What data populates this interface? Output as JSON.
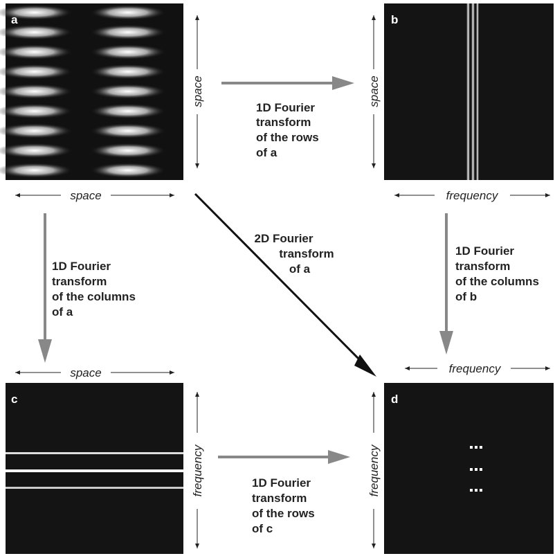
{
  "panels": [
    {
      "label": "a"
    },
    {
      "label": "b"
    },
    {
      "label": "c"
    },
    {
      "label": "d"
    }
  ],
  "axis_labels": [
    "space",
    "space",
    "space",
    "frequency",
    "space",
    "frequency",
    "frequency",
    "frequency"
  ],
  "arrows": [
    {
      "caption": [
        "1D Fourier",
        "transform",
        "of the rows",
        "of a"
      ]
    },
    {
      "caption": [
        "1D Fourier",
        "transform",
        "of the columns",
        "of a"
      ]
    },
    {
      "caption": [
        "2D Fourier",
        "transform",
        "of a"
      ]
    },
    {
      "caption": [
        "1D Fourier",
        "transform",
        "of the columns",
        "of b"
      ]
    },
    {
      "caption": [
        "1D Fourier",
        "transform",
        "of the rows",
        "of c"
      ]
    }
  ]
}
